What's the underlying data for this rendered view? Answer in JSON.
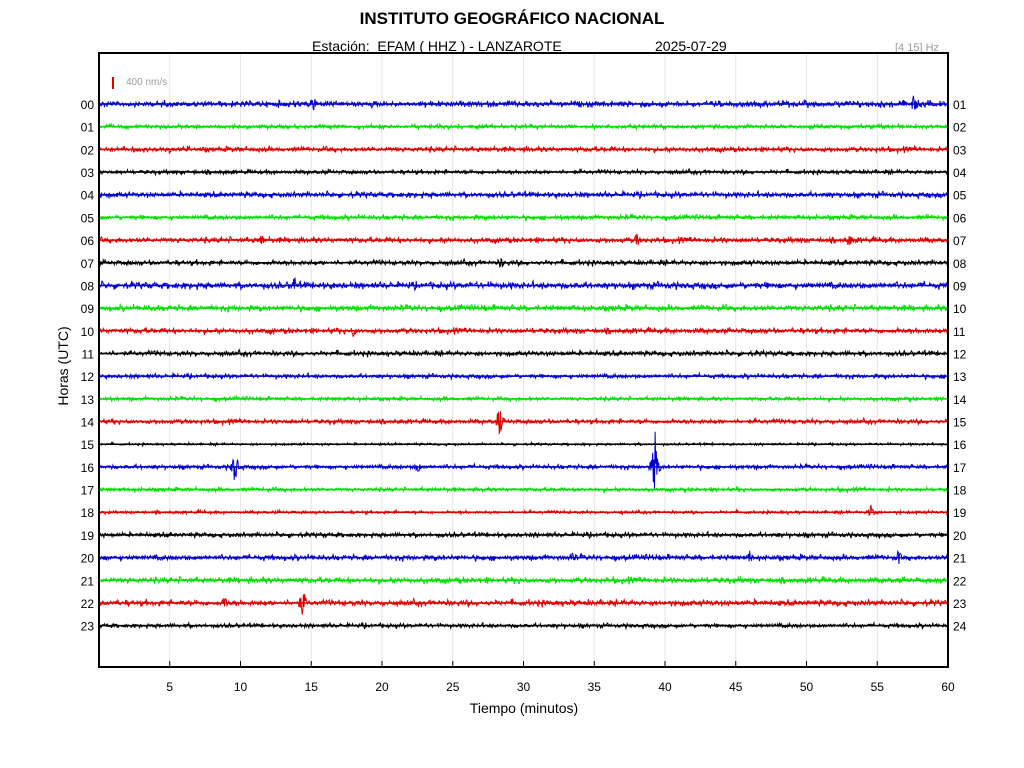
{
  "header": {
    "title": "INSTITUTO GEOGRÁFICO NACIONAL",
    "station_line": "Estación:  EFAM ( HHZ ) - LANZAROTE",
    "date": "2025-07-29",
    "band": "[4 15] Hz"
  },
  "chart_data": {
    "type": "line",
    "xlabel": "Tiempo (minutos)",
    "ylabel": "Horas (UTC)",
    "xlim": [
      0,
      60
    ],
    "x_ticks": [
      5,
      10,
      15,
      20,
      25,
      30,
      35,
      40,
      45,
      50,
      55,
      60
    ],
    "grid": "vertical",
    "scale_label": "400 nm/s",
    "scale_color": "#e00000",
    "left_hour_labels": [
      "00",
      "01",
      "02",
      "03",
      "04",
      "05",
      "06",
      "07",
      "08",
      "09",
      "10",
      "11",
      "12",
      "13",
      "14",
      "15",
      "16",
      "17",
      "18",
      "19",
      "20",
      "21",
      "22",
      "23"
    ],
    "right_hour_labels": [
      "01",
      "02",
      "03",
      "04",
      "05",
      "06",
      "07",
      "08",
      "09",
      "10",
      "11",
      "12",
      "13",
      "14",
      "15",
      "16",
      "17",
      "18",
      "19",
      "20",
      "21",
      "22",
      "23",
      "24"
    ],
    "trace_colors": [
      "#0000cc",
      "#00e000",
      "#dd0000",
      "#000000"
    ],
    "noise_amplitude_nm_s": [
      150,
      110,
      130,
      110,
      140,
      120,
      140,
      130,
      170,
      150,
      140,
      130,
      110,
      100,
      120,
      60,
      110,
      100,
      80,
      120,
      140,
      150,
      150,
      110
    ],
    "events": [
      {
        "hour": 0,
        "minute": 15.2,
        "amplitude_nm_s": 350
      },
      {
        "hour": 0,
        "minute": 57.6,
        "amplitude_nm_s": 450
      },
      {
        "hour": 6,
        "minute": 11.5,
        "amplitude_nm_s": 300
      },
      {
        "hour": 6,
        "minute": 38.0,
        "amplitude_nm_s": 320
      },
      {
        "hour": 6,
        "minute": 53.0,
        "amplitude_nm_s": 320
      },
      {
        "hour": 7,
        "minute": 28.4,
        "amplitude_nm_s": 280
      },
      {
        "hour": 8,
        "minute": 13.8,
        "amplitude_nm_s": 380
      },
      {
        "hour": 10,
        "minute": 18.0,
        "amplitude_nm_s": 280
      },
      {
        "hour": 14,
        "minute": 28.3,
        "amplitude_nm_s": 650
      },
      {
        "hour": 16,
        "minute": 9.6,
        "amplitude_nm_s": 700
      },
      {
        "hour": 16,
        "minute": 22.5,
        "amplitude_nm_s": 300
      },
      {
        "hour": 16,
        "minute": 39.3,
        "amplitude_nm_s": 1400
      },
      {
        "hour": 18,
        "minute": 54.6,
        "amplitude_nm_s": 450
      },
      {
        "hour": 20,
        "minute": 33.5,
        "amplitude_nm_s": 300
      },
      {
        "hour": 20,
        "minute": 46.0,
        "amplitude_nm_s": 300
      },
      {
        "hour": 20,
        "minute": 56.5,
        "amplitude_nm_s": 320
      },
      {
        "hour": 22,
        "minute": 14.4,
        "amplitude_nm_s": 650
      },
      {
        "hour": 22,
        "minute": 8.9,
        "amplitude_nm_s": 300
      }
    ]
  }
}
